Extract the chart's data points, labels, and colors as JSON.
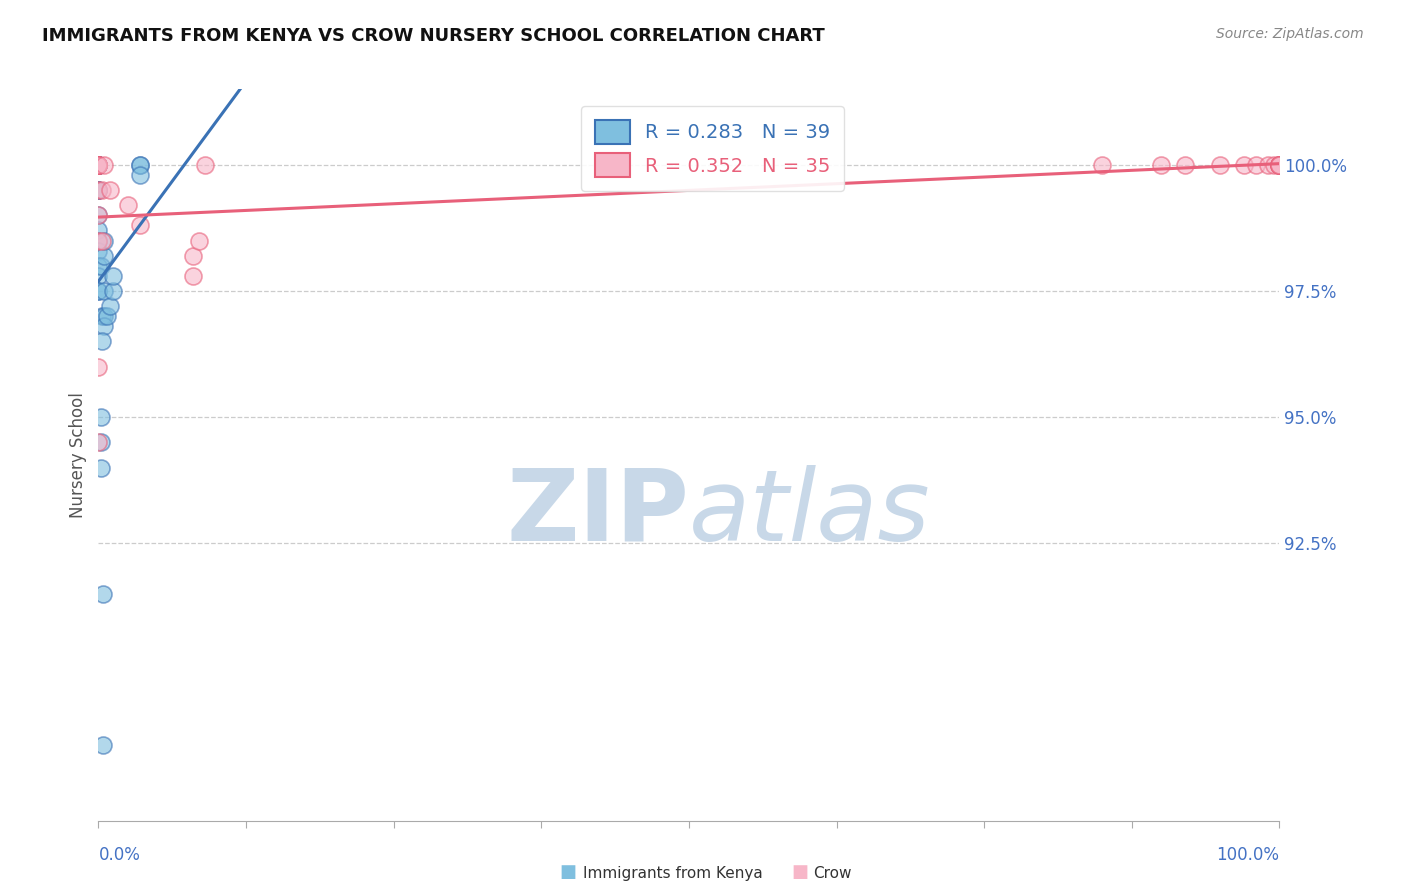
{
  "title": "IMMIGRANTS FROM KENYA VS CROW NURSERY SCHOOL CORRELATION CHART",
  "source_text": "Source: ZipAtlas.com",
  "ylabel": "Nursery School",
  "ytick_values": [
    92.5,
    95.0,
    97.5,
    100.0
  ],
  "legend_label1": "Immigrants from Kenya",
  "legend_label2": "Crow",
  "r1": 0.283,
  "n1": 39,
  "r2": 0.352,
  "n2": 35,
  "color_blue": "#7fbfdf",
  "color_pink": "#f7b6c8",
  "color_blue_line": "#3a72b5",
  "color_pink_line": "#e8607a",
  "blue_scatter_x": [
    0.0,
    0.0,
    0.0,
    0.0,
    0.0,
    0.0,
    0.0,
    0.0,
    0.0,
    0.0,
    0.0,
    0.0,
    0.0,
    0.0,
    0.0,
    0.0,
    0.0,
    0.0,
    0.0,
    0.2,
    0.3,
    0.5,
    0.5,
    0.5,
    0.5,
    0.5,
    0.7,
    1.0,
    1.2,
    1.2,
    0.3,
    3.5,
    3.5,
    3.5,
    0.2,
    0.2,
    0.2,
    0.4,
    0.4
  ],
  "blue_scatter_y": [
    100.0,
    100.0,
    100.0,
    100.0,
    100.0,
    100.0,
    100.0,
    100.0,
    99.5,
    99.5,
    99.5,
    99.0,
    98.7,
    98.5,
    98.3,
    98.0,
    97.8,
    97.5,
    97.5,
    98.0,
    97.0,
    98.2,
    98.5,
    97.5,
    97.0,
    96.8,
    97.0,
    97.2,
    97.5,
    97.8,
    96.5,
    100.0,
    100.0,
    99.8,
    95.0,
    94.5,
    94.0,
    91.5,
    88.5
  ],
  "pink_scatter_x": [
    0.0,
    0.0,
    0.0,
    0.0,
    0.0,
    0.0,
    0.0,
    0.0,
    0.0,
    0.0,
    0.3,
    0.3,
    0.5,
    1.0,
    2.5,
    3.5,
    8.0,
    8.0,
    8.5,
    9.0,
    85.0,
    90.0,
    92.0,
    95.0,
    97.0,
    98.0,
    99.0,
    99.5,
    100.0,
    100.0,
    100.0,
    100.0,
    100.0,
    0.0,
    0.0
  ],
  "pink_scatter_y": [
    100.0,
    100.0,
    100.0,
    100.0,
    100.0,
    100.0,
    100.0,
    99.5,
    99.0,
    98.5,
    99.5,
    98.5,
    100.0,
    99.5,
    99.2,
    98.8,
    98.2,
    97.8,
    98.5,
    100.0,
    100.0,
    100.0,
    100.0,
    100.0,
    100.0,
    100.0,
    100.0,
    100.0,
    100.0,
    100.0,
    100.0,
    100.0,
    100.0,
    94.5,
    96.0
  ],
  "xlim": [
    0,
    100
  ],
  "ylim": [
    87.0,
    101.5
  ],
  "plot_ylim": [
    87.0,
    101.5
  ],
  "background_color": "#ffffff",
  "watermark_zip": "ZIP",
  "watermark_atlas": "atlas",
  "watermark_color": "#c8d8e8"
}
